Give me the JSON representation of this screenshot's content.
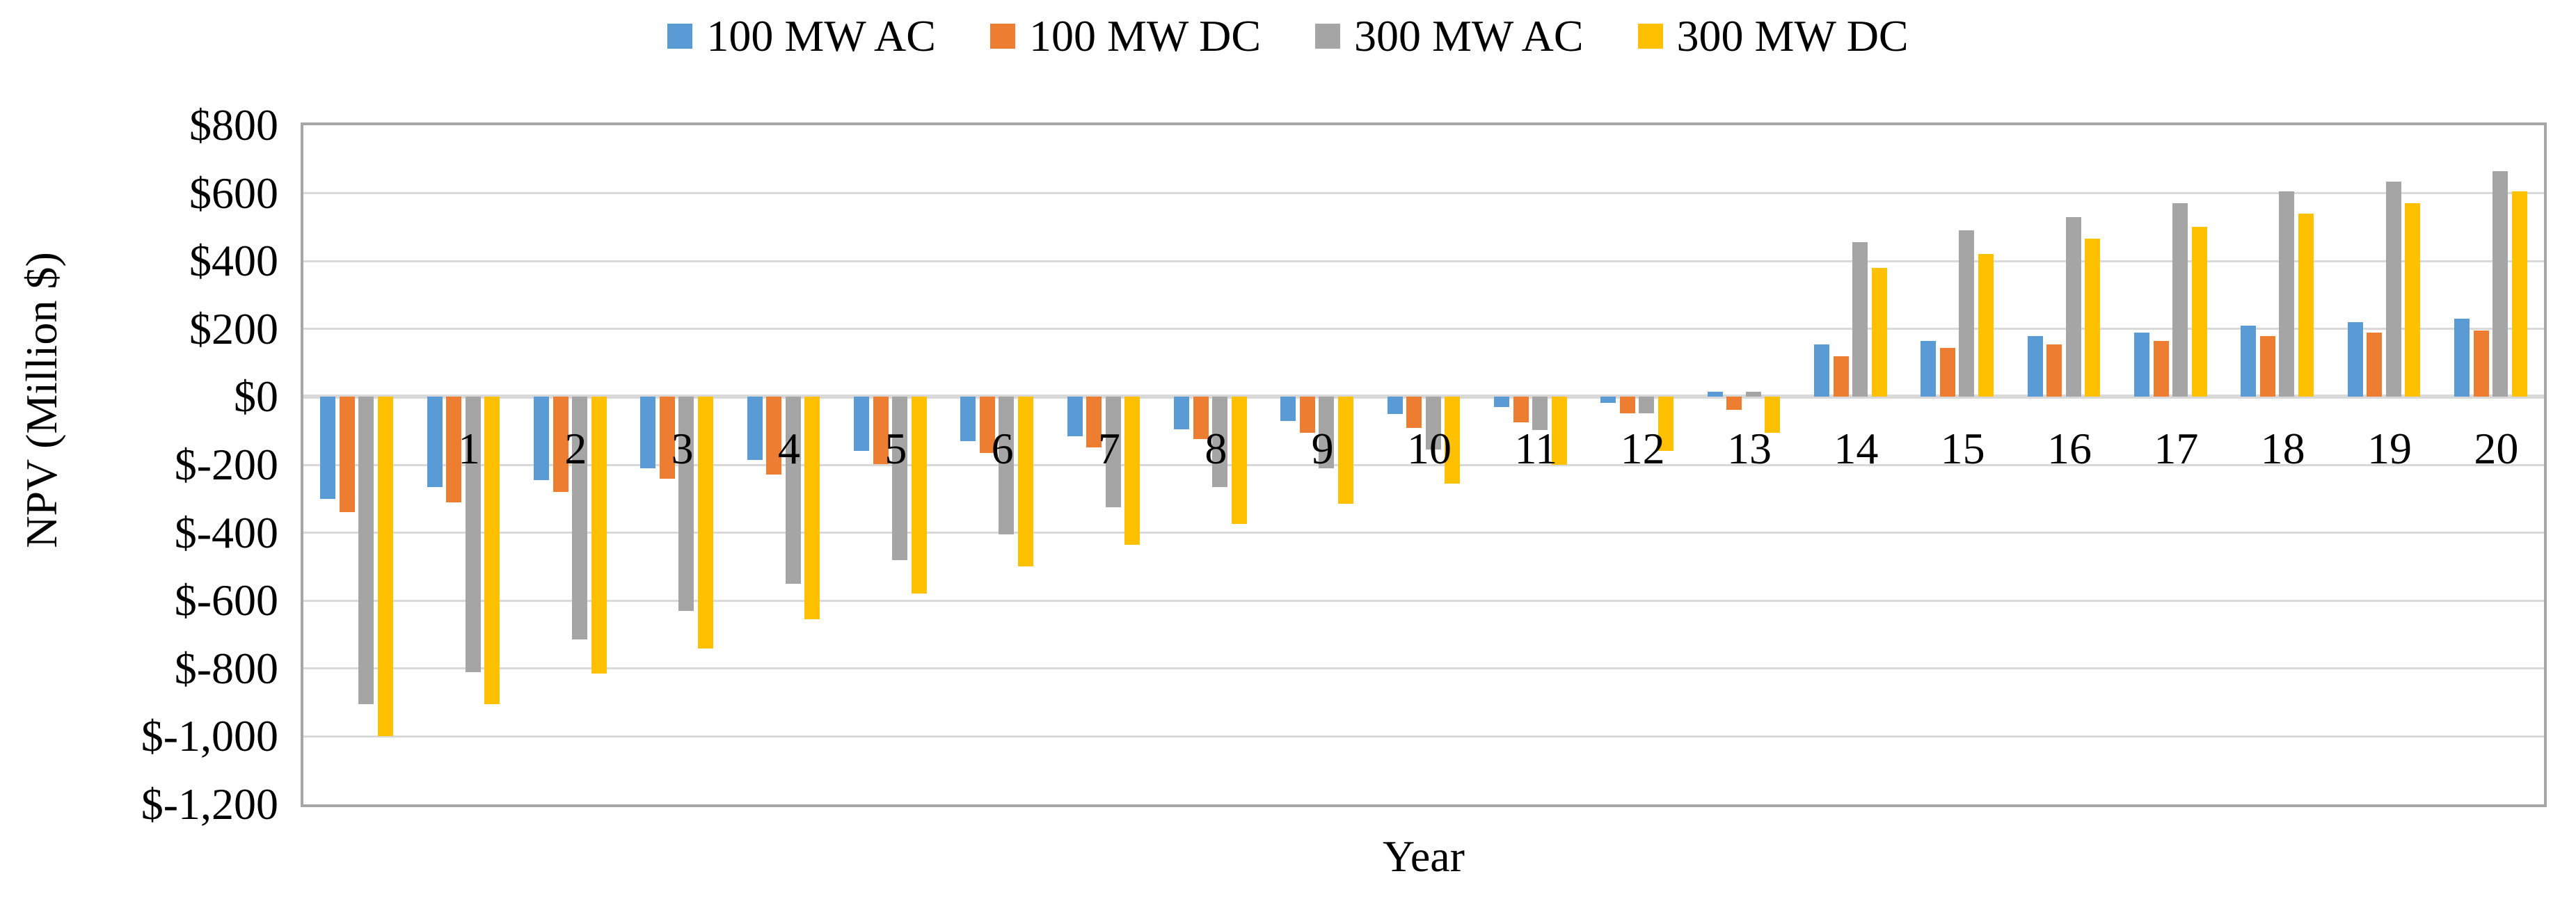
{
  "chart_data": {
    "type": "bar",
    "title": "",
    "xlabel": "Year",
    "ylabel": "NPV (Million $)",
    "categories": [
      "",
      "1",
      "2",
      "3",
      "4",
      "5",
      "6",
      "7",
      "8",
      "9",
      "10",
      "11",
      "12",
      "13",
      "14",
      "15",
      "16",
      "17",
      "18",
      "19",
      "20"
    ],
    "series": [
      {
        "name": "100 MW AC",
        "color": "#5B9BD5",
        "values": [
          -300,
          -265,
          -245,
          -210,
          -185,
          -160,
          -130,
          -115,
          -95,
          -70,
          -50,
          -30,
          -18,
          15,
          155,
          165,
          180,
          190,
          210,
          220,
          230
        ]
      },
      {
        "name": "100 MW DC",
        "color": "#ED7D31",
        "values": [
          -340,
          -310,
          -280,
          -240,
          -228,
          -198,
          -165,
          -148,
          -125,
          -105,
          -92,
          -74,
          -49,
          -39,
          120,
          145,
          155,
          165,
          180,
          190,
          195
        ]
      },
      {
        "name": "300 MW AC",
        "color": "#A5A5A5",
        "values": [
          -905,
          -810,
          -715,
          -630,
          -550,
          -480,
          -405,
          -325,
          -265,
          -210,
          -155,
          -98,
          -48,
          15,
          455,
          490,
          530,
          570,
          605,
          635,
          665
        ]
      },
      {
        "name": "300 MW DC",
        "color": "#FFC000",
        "values": [
          -1000,
          -905,
          -815,
          -740,
          -655,
          -580,
          -500,
          -435,
          -375,
          -315,
          -255,
          -200,
          -160,
          -106,
          380,
          420,
          465,
          500,
          540,
          570,
          605
        ]
      }
    ],
    "ylim": [
      -1200,
      800
    ],
    "ytick_step": 200,
    "ytick_labels": [
      "$800",
      "$600",
      "$400",
      "$200",
      "$0",
      "$-200",
      "$-400",
      "$-600",
      "$-800",
      "$-1,000",
      "$-1,200"
    ],
    "grid": true,
    "legend_position": "top",
    "grid_color": "#D9D9D9",
    "axis_border_color": "#A6A6A6",
    "text_color": "#000000"
  }
}
